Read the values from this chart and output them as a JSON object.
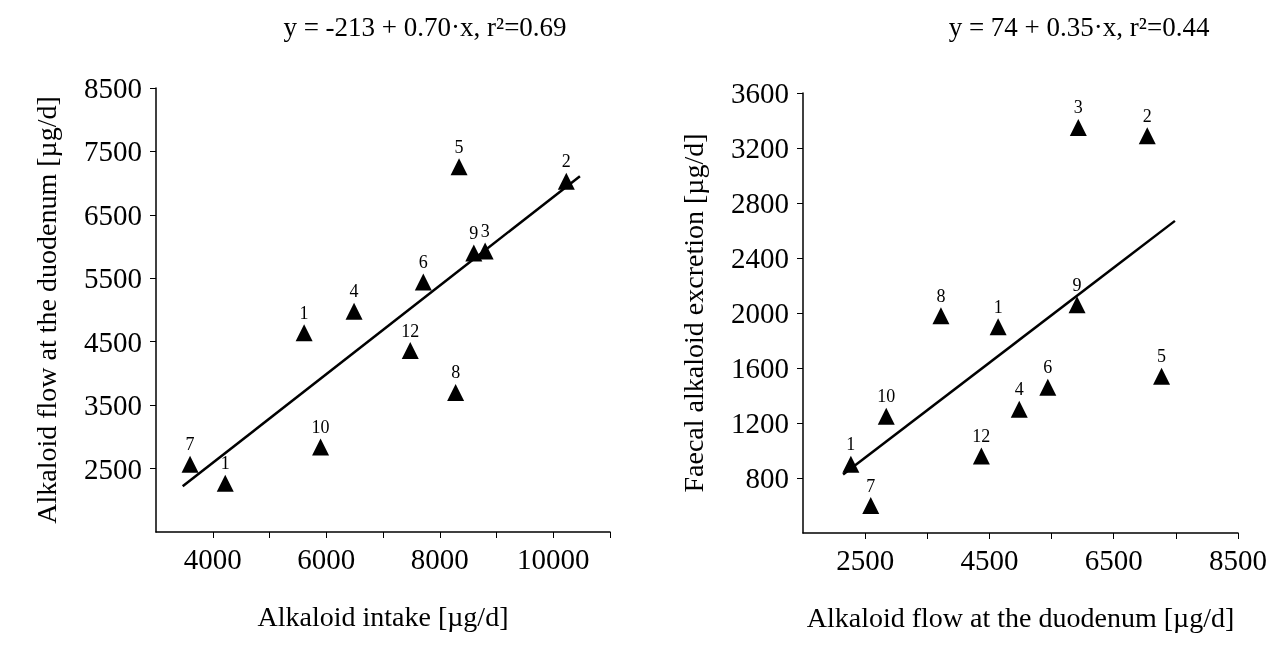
{
  "chart_data": [
    {
      "type": "scatter",
      "title": "y = -213 + 0.70·x, r²=0.69",
      "xlabel": "Alkaloid intake [µg/d]",
      "ylabel": "Alkaloid flow at the duodenum [µg/d]",
      "xlim": [
        3000,
        11000
      ],
      "xticks": [
        4000,
        {
          "value": 5000,
          "label": null
        },
        6000,
        {
          "value": 7000,
          "label": null
        },
        8000,
        {
          "value": 9000,
          "label": null
        },
        10000,
        {
          "value": 11000,
          "label": null
        }
      ],
      "ylim": [
        1500,
        8500
      ],
      "yticks": [
        2500,
        3500,
        4500,
        5500,
        6500,
        7500,
        8500
      ],
      "grid": false,
      "series": [
        {
          "marker": "triangle",
          "color": "#000000",
          "x": [
            3600,
            4220,
            5900,
            5610,
            6490,
            7480,
            7710,
            8280,
            8600,
            8800,
            8340,
            10230
          ],
          "values": [
            2570,
            2270,
            2840,
            4640,
            4980,
            4360,
            5440,
            3700,
            5900,
            5930,
            7260,
            7030
          ]
        },
        {
          "type": "line",
          "marker": "none",
          "color": "#000000",
          "x": [
            3470,
            10470
          ],
          "values": [
            2220,
            7110
          ]
        }
      ],
      "annotations": [
        {
          "text": "7",
          "x": 3600,
          "y": 2570
        },
        {
          "text": "1",
          "x": 4220,
          "y": 2270
        },
        {
          "text": "10",
          "x": 5900,
          "y": 2840
        },
        {
          "text": "1",
          "x": 5610,
          "y": 4640
        },
        {
          "text": "4",
          "x": 6490,
          "y": 4980
        },
        {
          "text": "12",
          "x": 7480,
          "y": 4360
        },
        {
          "text": "6",
          "x": 7710,
          "y": 5440
        },
        {
          "text": "8",
          "x": 8280,
          "y": 3700
        },
        {
          "text": "9",
          "x": 8600,
          "y": 5900
        },
        {
          "text": "3",
          "x": 8800,
          "y": 5930
        },
        {
          "text": "5",
          "x": 8340,
          "y": 7260
        },
        {
          "text": "2",
          "x": 10230,
          "y": 7030
        }
      ]
    },
    {
      "type": "scatter",
      "title": "y = 74 + 0.35·x, r²=0.44",
      "xlabel": "Alkaloid flow at the duodenum [µg/d]",
      "ylabel": "Faecal alkaloid excretion [µg/d]",
      "xlim": [
        1500,
        8500
      ],
      "xticks": [
        2500,
        {
          "value": 3500,
          "label": null
        },
        4500,
        {
          "value": 5500,
          "label": null
        },
        6500,
        {
          "value": 7500,
          "label": null
        },
        8500
      ],
      "ylim": [
        400,
        3600
      ],
      "yticks": [
        800,
        1200,
        1600,
        2000,
        2400,
        2800,
        3200,
        3600
      ],
      "grid": false,
      "series": [
        {
          "marker": "triangle",
          "color": "#000000",
          "x": [
            2270,
            2590,
            2840,
            4370,
            3720,
            4640,
            4980,
            5440,
            5910,
            7270,
            5930,
            7040
          ],
          "values": [
            900,
            600,
            1250,
            960,
            1980,
            1900,
            1300,
            1460,
            2060,
            1540,
            3350,
            3290
          ]
        },
        {
          "type": "line",
          "marker": "none",
          "color": "#000000",
          "x": [
            2145,
            7485
          ],
          "values": [
            825,
            2670
          ]
        }
      ],
      "annotations": [
        {
          "text": "1",
          "x": 2270,
          "y": 900
        },
        {
          "text": "7",
          "x": 2590,
          "y": 600
        },
        {
          "text": "10",
          "x": 2840,
          "y": 1250
        },
        {
          "text": "12",
          "x": 4370,
          "y": 960
        },
        {
          "text": "8",
          "x": 3720,
          "y": 1980
        },
        {
          "text": "1",
          "x": 4640,
          "y": 1900
        },
        {
          "text": "4",
          "x": 4980,
          "y": 1300
        },
        {
          "text": "6",
          "x": 5440,
          "y": 1460
        },
        {
          "text": "9",
          "x": 5910,
          "y": 2060
        },
        {
          "text": "5",
          "x": 7270,
          "y": 1540
        },
        {
          "text": "3",
          "x": 5930,
          "y": 3350
        },
        {
          "text": "2",
          "x": 7040,
          "y": 3290
        }
      ]
    }
  ]
}
